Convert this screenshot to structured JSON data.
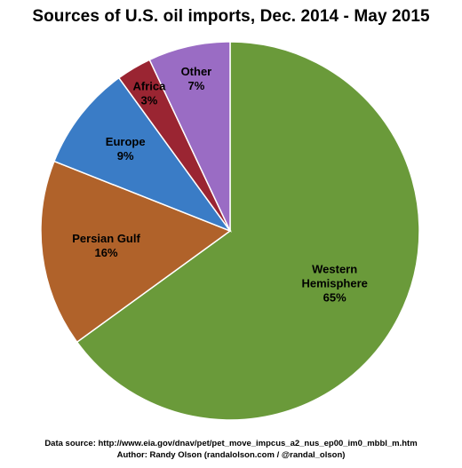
{
  "chart_data": {
    "type": "pie",
    "title": "Sources of U.S. oil imports, Dec. 2014 - May 2015",
    "slices": [
      {
        "label": "Western Hemisphere",
        "label_lines": [
          "Western",
          "Hemisphere"
        ],
        "value": 65,
        "value_label": "65%",
        "color": "#6a9a3a",
        "text_color": "#000000"
      },
      {
        "label": "Persian Gulf",
        "label_lines": [
          "Persian Gulf"
        ],
        "value": 16,
        "value_label": "16%",
        "color": "#b0622a",
        "text_color": "#000000"
      },
      {
        "label": "Europe",
        "label_lines": [
          "Europe"
        ],
        "value": 9,
        "value_label": "9%",
        "color": "#3a7cc6",
        "text_color": "#000000"
      },
      {
        "label": "Africa",
        "label_lines": [
          "Africa"
        ],
        "value": 3,
        "value_label": "3%",
        "color": "#9a2532",
        "text_color": "#000000"
      },
      {
        "label": "Other",
        "label_lines": [
          "Other"
        ],
        "value": 7,
        "value_label": "7%",
        "color": "#9a6cc4",
        "text_color": "#000000"
      }
    ],
    "start": "12 o'clock",
    "direction": "clockwise",
    "legend": "none"
  },
  "footer": {
    "source": "Data source: http://www.eia.gov/dnav/pet/pet_move_impcus_a2_nus_ep00_im0_mbbl_m.htm",
    "author": "Author: Randy Olson (randalolson.com / @randal_olson)"
  }
}
